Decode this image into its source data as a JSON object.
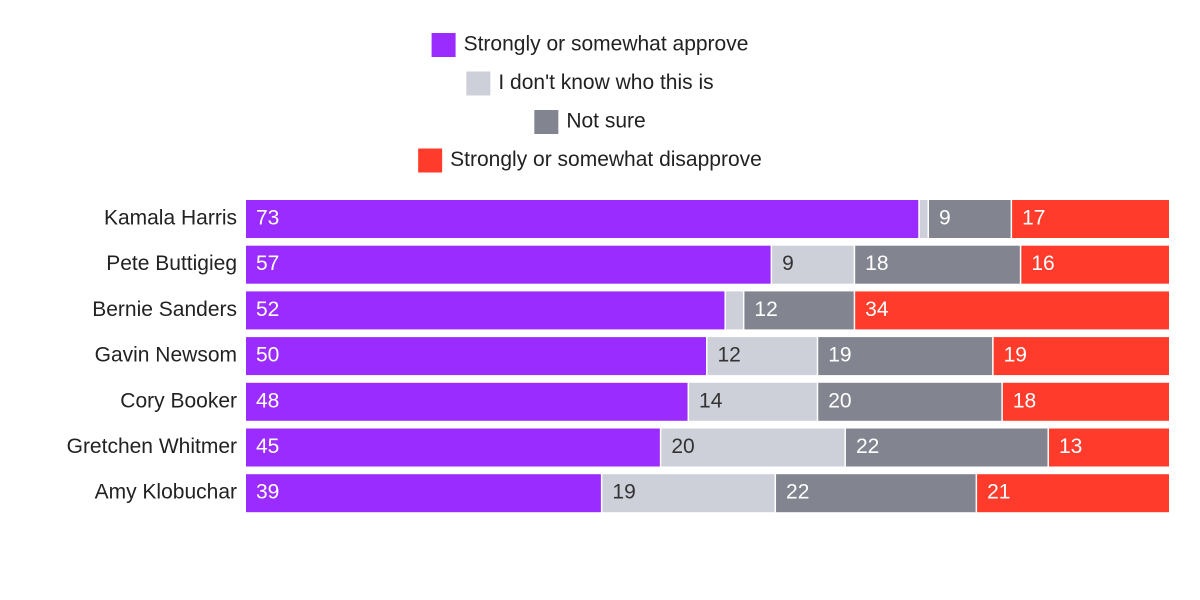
{
  "chart_data": {
    "type": "bar",
    "orientation": "horizontal",
    "stacked": true,
    "normalized": true,
    "title": "",
    "xlabel": "",
    "ylabel": "",
    "xlim": [
      0,
      100
    ],
    "grid": false,
    "legend_position": "top-center",
    "categories": [
      "Kamala Harris",
      "Pete Buttigieg",
      "Bernie Sanders",
      "Gavin Newsom",
      "Cory Booker",
      "Gretchen Whitmer",
      "Amy Klobuchar"
    ],
    "series": [
      {
        "name": "Strongly or somewhat approve",
        "color": "#9B2CFF",
        "label_color": "#ffffff",
        "values": [
          73,
          57,
          52,
          50,
          48,
          45,
          39
        ]
      },
      {
        "name": "I don't know who this is",
        "color": "#CDD0D9",
        "label_color": "#333333",
        "values": [
          1,
          9,
          2,
          12,
          14,
          20,
          19
        ]
      },
      {
        "name": "Not sure",
        "color": "#828590",
        "label_color": "#ffffff",
        "values": [
          9,
          18,
          12,
          19,
          20,
          22,
          22
        ]
      },
      {
        "name": "Strongly or somewhat disapprove",
        "color": "#FF3C2C",
        "label_color": "#ffffff",
        "values": [
          17,
          16,
          34,
          19,
          18,
          13,
          21
        ]
      }
    ],
    "shown_labels": [
      [
        "73",
        "",
        "9",
        "17"
      ],
      [
        "57",
        "9",
        "18",
        "16"
      ],
      [
        "52",
        "",
        "12",
        "34"
      ],
      [
        "50",
        "12",
        "19",
        "19"
      ],
      [
        "48",
        "14",
        "20",
        "18"
      ],
      [
        "45",
        "20",
        "22",
        "13"
      ],
      [
        "39",
        "19",
        "22",
        "21"
      ]
    ]
  }
}
